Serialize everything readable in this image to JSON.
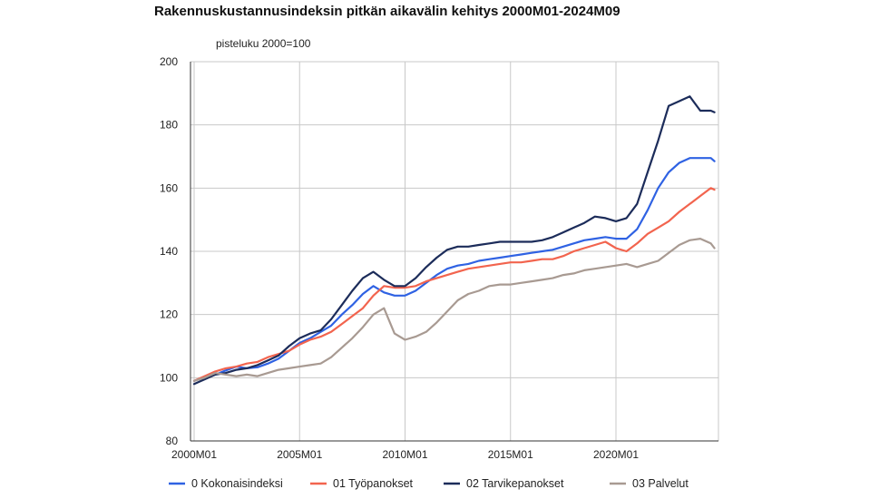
{
  "chart_data": {
    "type": "line",
    "title": "Rakennuskustannusindeksin pitkän aikavälin kehitys 2000M01-2024M09",
    "ylabel": "pisteluku 2000=100",
    "xlabel": "",
    "ylim": [
      80,
      200
    ],
    "yticks": [
      80,
      100,
      120,
      140,
      160,
      180,
      200
    ],
    "xticks": [
      "2000M01",
      "2005M01",
      "2010M01",
      "2015M01",
      "2020M01"
    ],
    "grid": true,
    "legend_position": "bottom",
    "x": [
      2000.0,
      2000.5,
      2001.0,
      2001.5,
      2002.0,
      2002.5,
      2003.0,
      2003.5,
      2004.0,
      2004.5,
      2005.0,
      2005.5,
      2006.0,
      2006.5,
      2007.0,
      2007.5,
      2008.0,
      2008.5,
      2009.0,
      2009.5,
      2010.0,
      2010.5,
      2011.0,
      2011.5,
      2012.0,
      2012.5,
      2013.0,
      2013.5,
      2014.0,
      2014.5,
      2015.0,
      2015.5,
      2016.0,
      2016.5,
      2017.0,
      2017.5,
      2018.0,
      2018.5,
      2019.0,
      2019.5,
      2020.0,
      2020.5,
      2021.0,
      2021.5,
      2022.0,
      2022.5,
      2023.0,
      2023.5,
      2024.0,
      2024.5,
      2024.67
    ],
    "series": [
      {
        "name": "0 Kokonaisindeksi",
        "color": "#2f62e3",
        "values": [
          99.0,
          100.2,
          101.0,
          102.3,
          103.5,
          103.0,
          103.3,
          104.5,
          106.0,
          108.5,
          111.0,
          112.5,
          114.5,
          116.5,
          120.0,
          123.0,
          126.5,
          129.0,
          127.0,
          126.0,
          126.0,
          127.5,
          130.0,
          132.5,
          134.5,
          135.5,
          136.0,
          137.0,
          137.5,
          138.0,
          138.5,
          139.0,
          139.5,
          140.0,
          140.5,
          141.5,
          142.5,
          143.5,
          144.0,
          144.5,
          144.0,
          144.0,
          147.0,
          153.0,
          160.0,
          165.0,
          168.0,
          169.5,
          169.5,
          169.5,
          168.5
        ]
      },
      {
        "name": "01 Työpanokset",
        "color": "#f2644e",
        "values": [
          99.0,
          100.5,
          102.0,
          103.0,
          103.5,
          104.5,
          105.0,
          106.5,
          107.5,
          108.5,
          110.5,
          112.0,
          113.0,
          114.5,
          117.0,
          119.5,
          122.0,
          126.0,
          129.0,
          128.5,
          128.5,
          129.0,
          130.5,
          131.5,
          132.5,
          133.5,
          134.5,
          135.0,
          135.5,
          136.0,
          136.5,
          136.5,
          137.0,
          137.5,
          137.5,
          138.5,
          140.0,
          141.0,
          142.0,
          143.0,
          141.0,
          140.0,
          142.5,
          145.5,
          147.5,
          149.5,
          152.5,
          155.0,
          157.5,
          160.0,
          159.5
        ]
      },
      {
        "name": "02 Tarvikepanokset",
        "color": "#1c2c5a",
        "values": [
          98.0,
          99.5,
          101.0,
          101.5,
          102.5,
          103.0,
          104.0,
          105.5,
          107.0,
          110.0,
          112.5,
          114.0,
          115.0,
          118.5,
          123.0,
          127.5,
          131.5,
          133.5,
          131.0,
          129.0,
          129.0,
          131.5,
          135.0,
          138.0,
          140.5,
          141.5,
          141.5,
          142.0,
          142.5,
          143.0,
          143.0,
          143.0,
          143.0,
          143.5,
          144.5,
          146.0,
          147.5,
          149.0,
          151.0,
          150.5,
          149.5,
          150.5,
          155.0,
          165.0,
          175.0,
          186.0,
          187.5,
          189.0,
          184.5,
          184.5,
          184.0
        ]
      },
      {
        "name": "03 Palvelut",
        "color": "#a89a92",
        "values": [
          99.0,
          100.0,
          101.5,
          101.0,
          100.5,
          101.0,
          100.5,
          101.5,
          102.5,
          103.0,
          103.5,
          104.0,
          104.5,
          106.5,
          109.5,
          112.5,
          116.0,
          120.0,
          122.0,
          114.0,
          112.0,
          113.0,
          114.5,
          117.5,
          121.0,
          124.5,
          126.5,
          127.5,
          129.0,
          129.5,
          129.5,
          130.0,
          130.5,
          131.0,
          131.5,
          132.5,
          133.0,
          134.0,
          134.5,
          135.0,
          135.5,
          136.0,
          135.0,
          136.0,
          137.0,
          139.5,
          142.0,
          143.5,
          144.0,
          142.5,
          141.0
        ]
      }
    ]
  }
}
